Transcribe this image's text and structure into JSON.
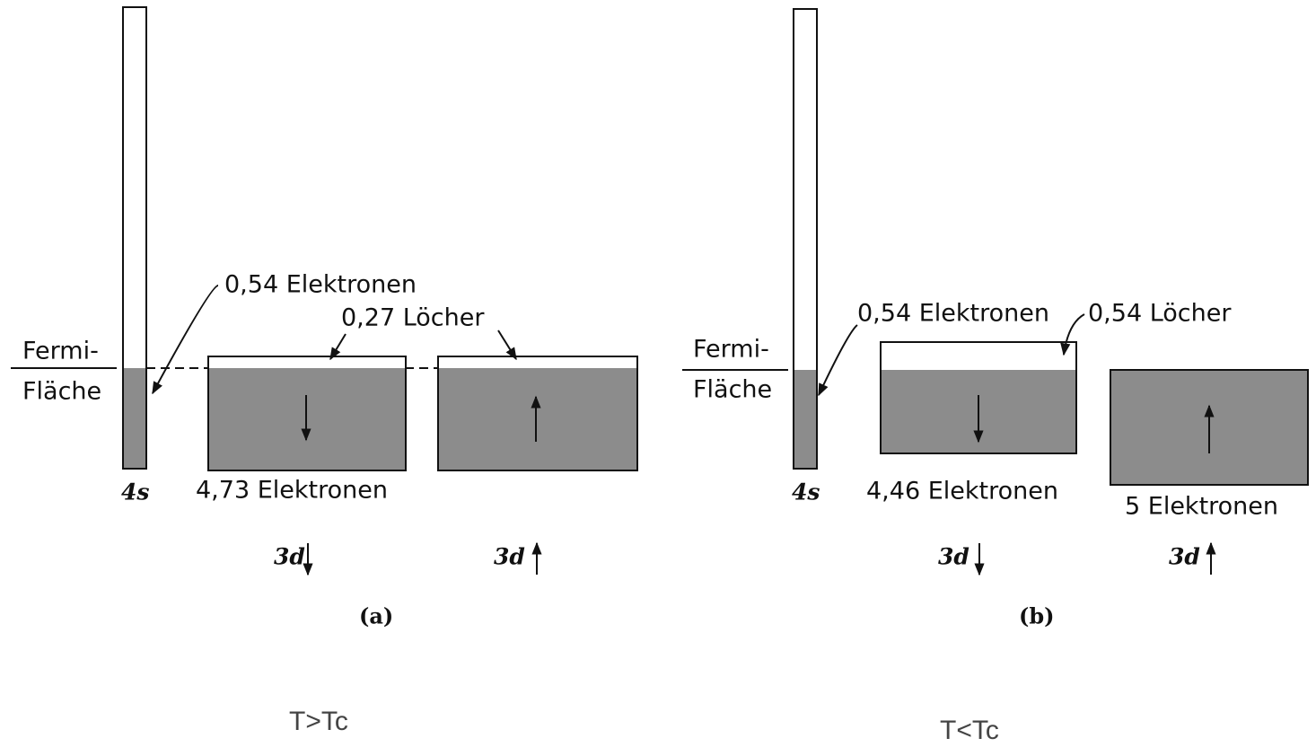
{
  "panels": [
    {
      "fermi": [
        "Fermi-",
        "Fläche"
      ],
      "electrons_4s": "0,54 Elektronen",
      "holes": "0,27 Löcher",
      "band_4s": "4s",
      "down_electrons": "4,73 Elektronen",
      "band_down": "3d",
      "band_up": "3d",
      "caption": "(a)",
      "condition": "T>Tc"
    },
    {
      "fermi": [
        "Fermi-",
        "Fläche"
      ],
      "electrons_4s": "0,54 Elektronen",
      "holes": "0,54 Löcher",
      "band_4s": "4s",
      "down_electrons": "4,46 Elektronen",
      "up_electrons": "5 Elektronen",
      "band_down": "3d",
      "band_up": "3d",
      "caption": "(b)",
      "condition": "T<Tc"
    }
  ]
}
